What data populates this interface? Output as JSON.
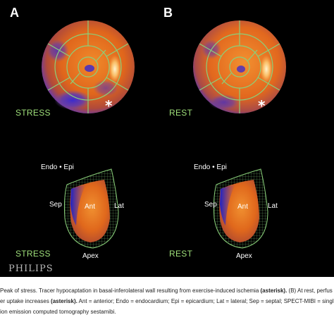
{
  "panels": {
    "a_letter": "A",
    "b_letter": "B",
    "stress_label": "STRESS",
    "rest_label": "REST",
    "asterisk": "*"
  },
  "mesh_labels": {
    "endo_epi": "Endo • Epi",
    "sep": "Sep",
    "ant": "Ant",
    "lat": "Lat",
    "apex": "Apex"
  },
  "vendor_logo": "PHILIPS",
  "caption": {
    "line1_a": "Peak of stress. Tracer hypocaptation in basal-inferolateral wall resulting from exercise-induced ischemia ",
    "line1_bold": "(asterisk).",
    "line1_b": " (B) At rest, perfus",
    "line2_a": "er uptake increases ",
    "line2_bold": "(asterisk).",
    "line2_b": " Ant = anterior; Endo = endocardium; Epi = epicardium; Lat = lateral; Sep = septal; SPECT-MIBI = singl",
    "line3": "ion emission computed tomography sestamibi."
  },
  "colors": {
    "background": "#000000",
    "label_green": "#9fe07a",
    "map_orange": "#e06a1e",
    "map_purple": "#6a3aa8",
    "map_blue": "#1a22c8"
  }
}
